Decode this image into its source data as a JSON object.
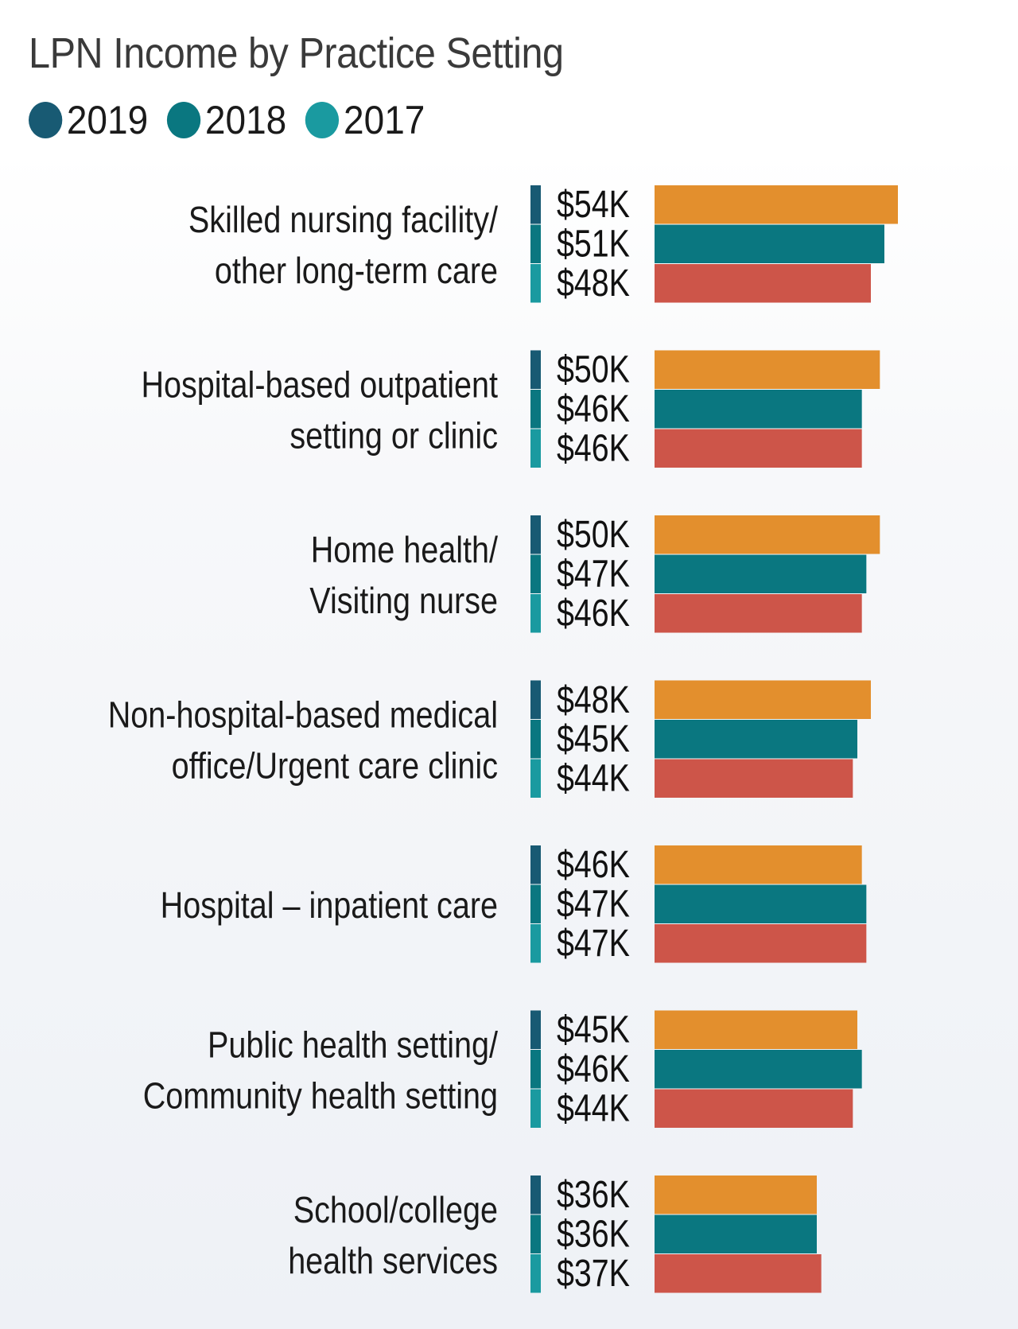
{
  "chart_data": {
    "type": "bar",
    "orientation": "horizontal",
    "title": "LPN Income by Practice Setting",
    "legend": {
      "placement": "top-left",
      "entries": [
        {
          "label": "2019",
          "color": "#185a73"
        },
        {
          "label": "2018",
          "color": "#0a7780"
        },
        {
          "label": "2017",
          "color": "#1a9aa0"
        }
      ]
    },
    "bar_colors": [
      "#e38f2d",
      "#0a7780",
      "#cd5549"
    ],
    "value_unit_prefix": "$",
    "value_unit_suffix": "K",
    "xlim": [
      0,
      54
    ],
    "categories": [
      {
        "label_lines": [
          "Skilled nursing facility/",
          "other long-term care"
        ],
        "values": [
          54,
          51,
          48
        ],
        "labels": [
          "$54K",
          "$51K",
          "$48K"
        ]
      },
      {
        "label_lines": [
          "Hospital-based outpatient",
          "setting or clinic"
        ],
        "values": [
          50,
          46,
          46
        ],
        "labels": [
          "$50K",
          "$46K",
          "$46K"
        ]
      },
      {
        "label_lines": [
          "Home health/",
          "Visiting nurse"
        ],
        "values": [
          50,
          47,
          46
        ],
        "labels": [
          "$50K",
          "$47K",
          "$46K"
        ]
      },
      {
        "label_lines": [
          "Non-hospital-based medical",
          "office/Urgent care clinic"
        ],
        "values": [
          48,
          45,
          44
        ],
        "labels": [
          "$48K",
          "$45K",
          "$44K"
        ]
      },
      {
        "label_lines": [
          "Hospital – inpatient care"
        ],
        "values": [
          46,
          47,
          47
        ],
        "labels": [
          "$46K",
          "$47K",
          "$47K"
        ]
      },
      {
        "label_lines": [
          "Public health setting/",
          "Community health setting"
        ],
        "values": [
          45,
          46,
          44
        ],
        "labels": [
          "$45K",
          "$46K",
          "$44K"
        ]
      },
      {
        "label_lines": [
          "School/college",
          "health services"
        ],
        "values": [
          36,
          36,
          37
        ],
        "labels": [
          "$36K",
          "$36K",
          "$37K"
        ]
      }
    ]
  }
}
